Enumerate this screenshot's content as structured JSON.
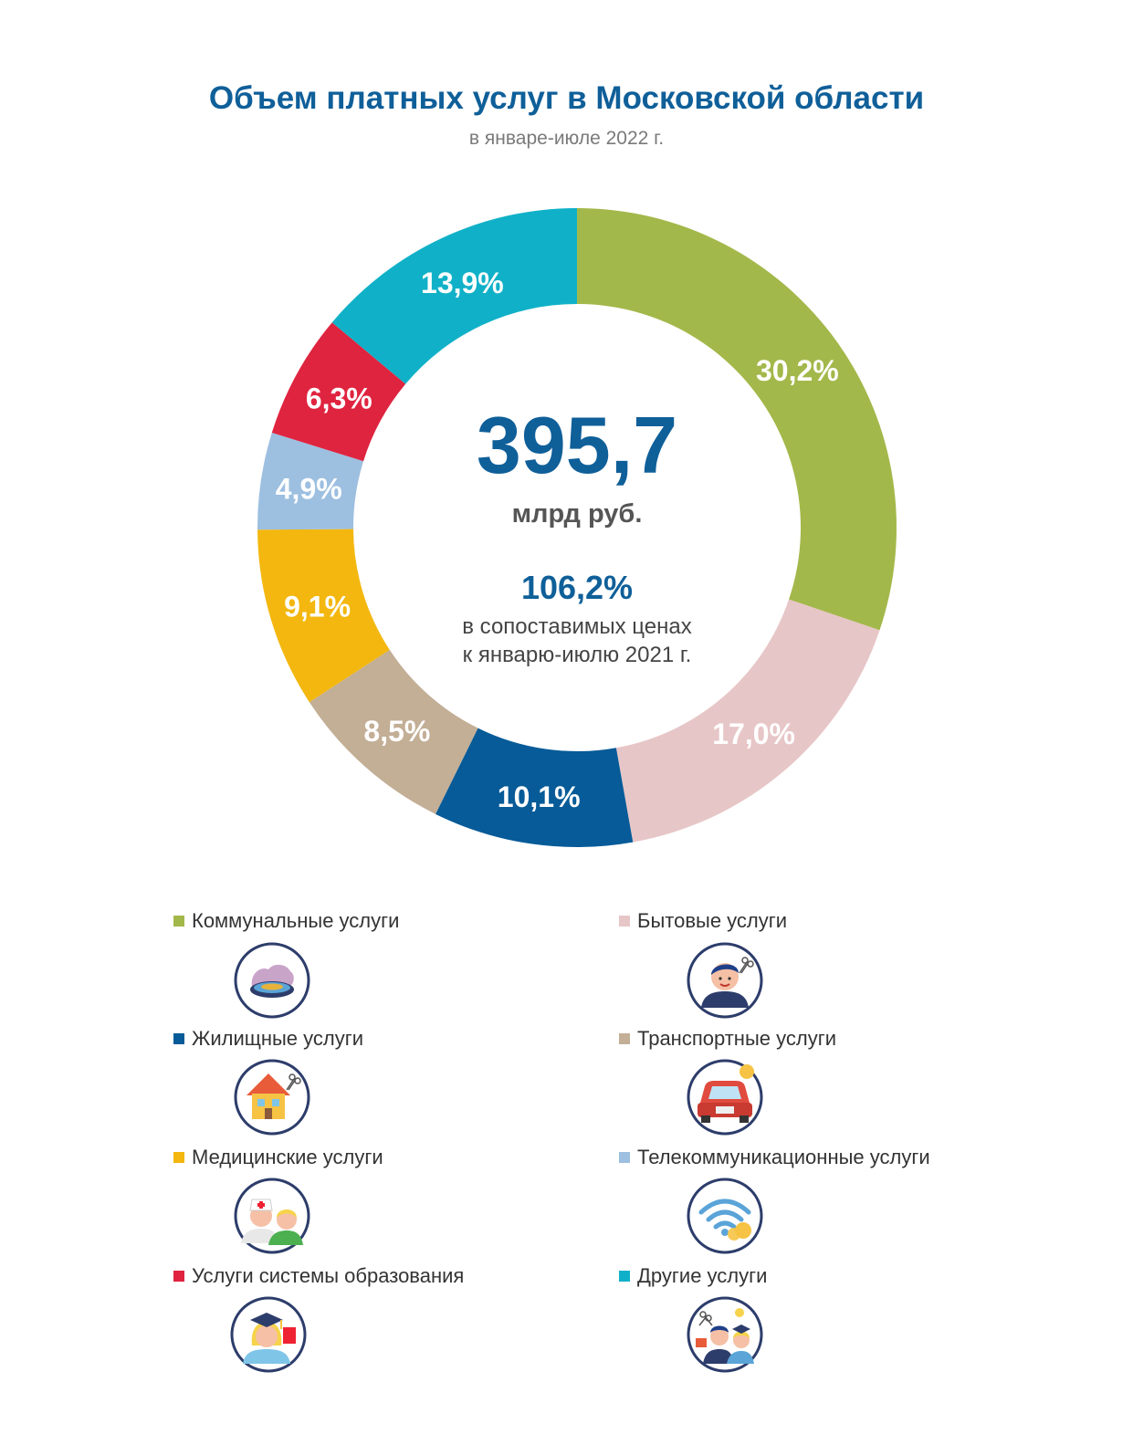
{
  "header": {
    "title": "Объем платных услуг в Московской области",
    "subtitle": "в январе-июле 2022 г."
  },
  "center": {
    "total_value": "395,7",
    "total_unit": "млрд руб.",
    "index_value": "106,2%",
    "index_line1": "в сопоставимых ценах",
    "index_line2": "к январю-июлю 2021 г."
  },
  "chart_data": {
    "type": "pie",
    "variant": "donut",
    "total": "395,7 млрд руб.",
    "categories": [
      "Коммунальные услуги",
      "Бытовые услуги",
      "Жилищные услуги",
      "Транспортные услуги",
      "Медицинские услуги",
      "Телекоммуникационные услуги",
      "Услуги системы образования",
      "Другие услуги"
    ],
    "values": [
      30.2,
      17.0,
      10.1,
      8.5,
      9.1,
      4.9,
      6.3,
      13.9
    ],
    "labels": [
      "30,2%",
      "17,0%",
      "10,1%",
      "8,5%",
      "9,1%",
      "4,9%",
      "6,3%",
      "13,9%"
    ],
    "colors": [
      "#a3b84a",
      "#e7c6c7",
      "#065b98",
      "#c3ae96",
      "#f3b70f",
      "#9dbfe0",
      "#df2440",
      "#10b1c8"
    ],
    "legend_placement": "bottom"
  },
  "legend": [
    {
      "label": "Коммунальные услуги",
      "color": "#a3b84a",
      "icon": "gas-burner-icon"
    },
    {
      "label": "Бытовые услуги",
      "color": "#e7c6c7",
      "icon": "barber-icon"
    },
    {
      "label": "Жилищные услуги",
      "color": "#065b98",
      "icon": "house-icon"
    },
    {
      "label": "Транспортные услуги",
      "color": "#c3ae96",
      "icon": "car-icon"
    },
    {
      "label": "Медицинские услуги",
      "color": "#f3b70f",
      "icon": "doctor-patient-icon"
    },
    {
      "label": "Телекоммуникационные услуги",
      "color": "#9dbfe0",
      "icon": "wifi-icon"
    },
    {
      "label": "Услуги системы образования",
      "color": "#df2440",
      "icon": "graduate-icon"
    },
    {
      "label": "Другие услуги",
      "color": "#10b1c8",
      "icon": "people-services-icon"
    }
  ]
}
